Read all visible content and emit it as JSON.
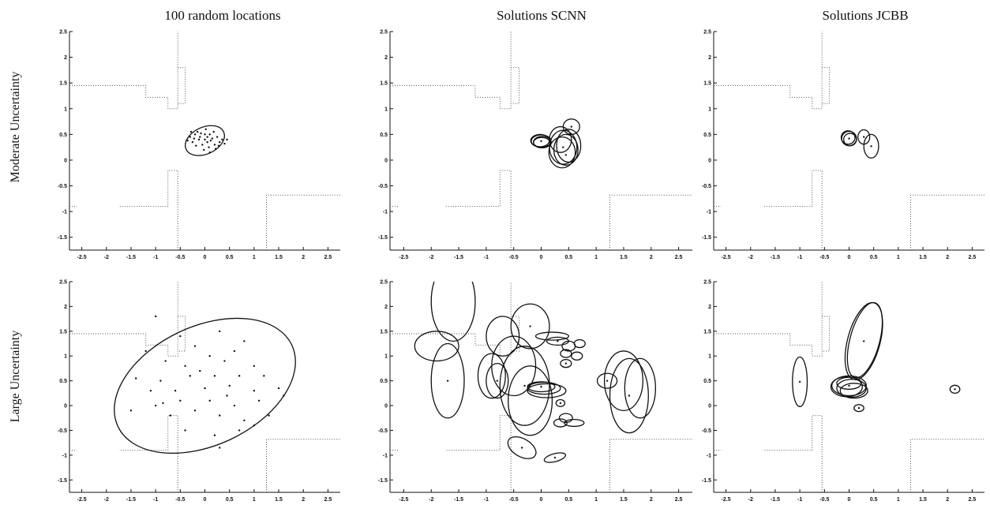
{
  "figure": {
    "col_titles": [
      "100 random locations",
      "Solutions SCNN",
      "Solutions JCBB"
    ],
    "row_labels": [
      "Moderate Uncertainty",
      "Large Uncertainty"
    ]
  },
  "axes": {
    "xlim": [
      -2.75,
      2.75
    ],
    "ylim": [
      -1.75,
      2.5
    ],
    "xticks": [
      "-2.5",
      "-2",
      "-1.5",
      "-1",
      "-0.5",
      "0",
      "0.5",
      "1",
      "1.5",
      "2",
      "2.5"
    ],
    "yticks": [
      "2.5",
      "2",
      "1.5",
      "1",
      "0.5",
      "0",
      "-0.5",
      "-1",
      "-1.5"
    ]
  },
  "map_walls": [
    [
      [
        -2.75,
        1.45
      ],
      [
        -1.2,
        1.45
      ],
      [
        -1.2,
        1.22
      ],
      [
        -0.75,
        1.22
      ],
      [
        -0.75,
        1.0
      ],
      [
        -0.55,
        1.0
      ],
      [
        -0.55,
        2.5
      ]
    ],
    [
      [
        -0.55,
        1.8
      ],
      [
        -0.4,
        1.8
      ],
      [
        -0.4,
        1.1
      ],
      [
        -0.55,
        1.1
      ]
    ],
    [
      [
        -0.55,
        -1.75
      ],
      [
        -0.55,
        -0.2
      ],
      [
        -0.75,
        -0.2
      ],
      [
        -0.75,
        -0.9
      ],
      [
        -1.75,
        -0.9
      ]
    ],
    [
      [
        -2.75,
        -0.9
      ],
      [
        -2.6,
        -0.9
      ]
    ],
    [
      [
        1.25,
        -1.75
      ],
      [
        1.25,
        -0.68
      ],
      [
        2.75,
        -0.68
      ]
    ]
  ],
  "chart_data": [
    {
      "type": "scatter",
      "title": "100 random locations",
      "row": "Moderate Uncertainty",
      "xlim": [
        -2.75,
        2.75
      ],
      "ylim": [
        -1.75,
        2.5
      ],
      "ellipses": [
        {
          "cx": 0.0,
          "cy": 0.38,
          "rx": 0.42,
          "ry": 0.26,
          "angle_deg": -25
        }
      ],
      "points": [
        [
          -0.2,
          0.5
        ],
        [
          -0.15,
          0.55
        ],
        [
          -0.1,
          0.45
        ],
        [
          0.0,
          0.4
        ],
        [
          0.05,
          0.35
        ],
        [
          0.1,
          0.5
        ],
        [
          0.15,
          0.42
        ],
        [
          0.2,
          0.3
        ],
        [
          -0.25,
          0.35
        ],
        [
          -0.05,
          0.3
        ],
        [
          0.0,
          0.5
        ],
        [
          0.08,
          0.25
        ],
        [
          0.25,
          0.45
        ],
        [
          -0.3,
          0.45
        ],
        [
          0.12,
          0.38
        ],
        [
          -0.12,
          0.4
        ],
        [
          0.3,
          0.35
        ],
        [
          0.02,
          0.6
        ],
        [
          -0.18,
          0.28
        ],
        [
          0.18,
          0.55
        ],
        [
          0.35,
          0.4
        ],
        [
          -0.08,
          0.52
        ],
        [
          0.05,
          0.45
        ],
        [
          -0.22,
          0.42
        ],
        [
          0.22,
          0.22
        ],
        [
          0.1,
          0.15
        ],
        [
          -0.02,
          0.2
        ],
        [
          0.28,
          0.28
        ],
        [
          -0.35,
          0.38
        ],
        [
          0.4,
          0.32
        ],
        [
          0.45,
          0.4
        ],
        [
          -0.28,
          0.55
        ]
      ]
    },
    {
      "type": "scatter",
      "title": "Solutions SCNN",
      "row": "Moderate Uncertainty",
      "xlim": [
        -2.75,
        2.75
      ],
      "ylim": [
        -1.75,
        2.5
      ],
      "ellipses": [
        {
          "cx": 0.0,
          "cy": 0.37,
          "rx": 0.18,
          "ry": 0.12,
          "angle_deg": 0
        },
        {
          "cx": 0.02,
          "cy": 0.35,
          "rx": 0.16,
          "ry": 0.11,
          "angle_deg": 0
        },
        {
          "cx": -0.02,
          "cy": 0.38,
          "rx": 0.17,
          "ry": 0.12,
          "angle_deg": 0
        },
        {
          "cx": 0.01,
          "cy": 0.34,
          "rx": 0.15,
          "ry": 0.1,
          "angle_deg": 0
        },
        {
          "cx": 0.4,
          "cy": 0.25,
          "rx": 0.25,
          "ry": 0.33,
          "angle_deg": 0
        },
        {
          "cx": 0.45,
          "cy": 0.2,
          "rx": 0.22,
          "ry": 0.3,
          "angle_deg": 0
        },
        {
          "cx": 0.38,
          "cy": 0.15,
          "rx": 0.24,
          "ry": 0.3,
          "angle_deg": 0
        },
        {
          "cx": 0.5,
          "cy": 0.28,
          "rx": 0.22,
          "ry": 0.32,
          "angle_deg": 0
        },
        {
          "cx": 0.55,
          "cy": 0.65,
          "rx": 0.15,
          "ry": 0.15,
          "angle_deg": 0
        },
        {
          "cx": 0.35,
          "cy": 0.4,
          "rx": 0.2,
          "ry": 0.25,
          "angle_deg": 0
        }
      ],
      "points": [
        [
          0.0,
          0.37
        ],
        [
          0.4,
          0.25
        ],
        [
          0.55,
          0.65
        ],
        [
          0.45,
          0.1
        ]
      ]
    },
    {
      "type": "scatter",
      "title": "Solutions JCBB",
      "row": "Moderate Uncertainty",
      "xlim": [
        -2.75,
        2.75
      ],
      "ylim": [
        -1.75,
        2.5
      ],
      "ellipses": [
        {
          "cx": 0.0,
          "cy": 0.42,
          "rx": 0.15,
          "ry": 0.14,
          "angle_deg": 0
        },
        {
          "cx": 0.02,
          "cy": 0.4,
          "rx": 0.13,
          "ry": 0.12,
          "angle_deg": 0
        },
        {
          "cx": -0.02,
          "cy": 0.44,
          "rx": 0.14,
          "ry": 0.13,
          "angle_deg": 0
        },
        {
          "cx": 0.3,
          "cy": 0.45,
          "rx": 0.12,
          "ry": 0.14,
          "angle_deg": 0
        },
        {
          "cx": 0.45,
          "cy": 0.27,
          "rx": 0.15,
          "ry": 0.23,
          "angle_deg": 0
        }
      ],
      "points": [
        [
          0.0,
          0.42
        ],
        [
          0.3,
          0.45
        ],
        [
          0.45,
          0.27
        ]
      ]
    },
    {
      "type": "scatter",
      "title": "100 random locations",
      "row": "Large Uncertainty",
      "xlim": [
        -2.75,
        2.75
      ],
      "ylim": [
        -1.75,
        2.5
      ],
      "ellipses": [
        {
          "cx": 0.0,
          "cy": 0.4,
          "rx": 1.95,
          "ry": 1.2,
          "angle_deg": -25
        }
      ],
      "points": [
        [
          -1.0,
          1.8
        ],
        [
          -0.5,
          1.4
        ],
        [
          0.3,
          1.5
        ],
        [
          0.8,
          1.3
        ],
        [
          -0.2,
          1.2
        ],
        [
          0.6,
          1.1
        ],
        [
          -1.2,
          1.1
        ],
        [
          -0.8,
          0.9
        ],
        [
          0.1,
          1.0
        ],
        [
          0.4,
          0.9
        ],
        [
          1.0,
          0.8
        ],
        [
          -0.4,
          0.8
        ],
        [
          -1.4,
          0.55
        ],
        [
          -0.9,
          0.5
        ],
        [
          -0.3,
          0.6
        ],
        [
          0.2,
          0.6
        ],
        [
          0.7,
          0.6
        ],
        [
          1.2,
          0.6
        ],
        [
          -1.1,
          0.3
        ],
        [
          -0.6,
          0.3
        ],
        [
          0.0,
          0.35
        ],
        [
          0.5,
          0.4
        ],
        [
          1.0,
          0.3
        ],
        [
          1.5,
          0.35
        ],
        [
          -1.5,
          -0.1
        ],
        [
          -1.0,
          0.0
        ],
        [
          -0.5,
          0.1
        ],
        [
          0.1,
          0.1
        ],
        [
          0.6,
          0.0
        ],
        [
          1.1,
          0.1
        ],
        [
          -0.7,
          -0.2
        ],
        [
          -0.2,
          -0.1
        ],
        [
          0.3,
          -0.2
        ],
        [
          0.8,
          -0.3
        ],
        [
          1.3,
          -0.2
        ],
        [
          -0.4,
          -0.5
        ],
        [
          0.2,
          -0.6
        ],
        [
          0.7,
          -0.5
        ],
        [
          1.0,
          -0.4
        ],
        [
          0.3,
          -0.85
        ],
        [
          1.6,
          0.2
        ],
        [
          -0.1,
          0.7
        ],
        [
          0.45,
          0.2
        ],
        [
          -0.85,
          0.05
        ]
      ]
    },
    {
      "type": "scatter",
      "title": "Solutions SCNN",
      "row": "Large Uncertainty",
      "xlim": [
        -2.75,
        2.75
      ],
      "ylim": [
        -1.75,
        2.5
      ],
      "ellipses": [
        {
          "cx": -1.6,
          "cy": 2.1,
          "rx": 0.4,
          "ry": 0.8,
          "angle_deg": 0
        },
        {
          "cx": -1.9,
          "cy": 1.2,
          "rx": 0.4,
          "ry": 0.3,
          "angle_deg": 0
        },
        {
          "cx": -1.7,
          "cy": 0.5,
          "rx": 0.3,
          "ry": 0.75,
          "angle_deg": 0
        },
        {
          "cx": -0.9,
          "cy": 0.6,
          "rx": 0.25,
          "ry": 0.45,
          "angle_deg": 0
        },
        {
          "cx": -0.8,
          "cy": 0.5,
          "rx": 0.2,
          "ry": 0.35,
          "angle_deg": 0
        },
        {
          "cx": -0.7,
          "cy": 1.4,
          "rx": 0.3,
          "ry": 0.4,
          "angle_deg": 0
        },
        {
          "cx": -0.2,
          "cy": 1.6,
          "rx": 0.35,
          "ry": 0.45,
          "angle_deg": 0
        },
        {
          "cx": -0.3,
          "cy": 0.4,
          "rx": 0.45,
          "ry": 0.8,
          "angle_deg": 0
        },
        {
          "cx": -0.2,
          "cy": 0.1,
          "rx": 0.4,
          "ry": 0.7,
          "angle_deg": 0
        },
        {
          "cx": -0.5,
          "cy": 0.8,
          "rx": 0.4,
          "ry": 0.6,
          "angle_deg": 0
        },
        {
          "cx": 0.05,
          "cy": 0.35,
          "rx": 0.3,
          "ry": 0.12,
          "angle_deg": 0
        },
        {
          "cx": 0.0,
          "cy": 0.38,
          "rx": 0.25,
          "ry": 0.1,
          "angle_deg": 0
        },
        {
          "cx": 0.1,
          "cy": 0.3,
          "rx": 0.35,
          "ry": 0.14,
          "angle_deg": 0
        },
        {
          "cx": 0.2,
          "cy": 1.4,
          "rx": 0.3,
          "ry": 0.08,
          "angle_deg": 0
        },
        {
          "cx": 0.3,
          "cy": 1.3,
          "rx": 0.2,
          "ry": 0.08,
          "angle_deg": 0
        },
        {
          "cx": 0.5,
          "cy": 1.2,
          "rx": 0.12,
          "ry": 0.1,
          "angle_deg": 0
        },
        {
          "cx": 0.7,
          "cy": 1.25,
          "rx": 0.1,
          "ry": 0.08,
          "angle_deg": 0
        },
        {
          "cx": 0.65,
          "cy": 1.0,
          "rx": 0.1,
          "ry": 0.08,
          "angle_deg": 0
        },
        {
          "cx": 0.45,
          "cy": 1.05,
          "rx": 0.1,
          "ry": 0.08,
          "angle_deg": 0
        },
        {
          "cx": 0.45,
          "cy": 0.85,
          "rx": 0.1,
          "ry": 0.08,
          "angle_deg": 0
        },
        {
          "cx": 0.35,
          "cy": 0.05,
          "rx": 0.08,
          "ry": 0.07,
          "angle_deg": 0
        },
        {
          "cx": 0.45,
          "cy": -0.25,
          "rx": 0.12,
          "ry": 0.09,
          "angle_deg": 0
        },
        {
          "cx": 0.35,
          "cy": -0.35,
          "rx": 0.12,
          "ry": 0.08,
          "angle_deg": 0
        },
        {
          "cx": 0.6,
          "cy": -0.35,
          "rx": 0.18,
          "ry": 0.07,
          "angle_deg": 0
        },
        {
          "cx": -0.35,
          "cy": -0.85,
          "rx": 0.28,
          "ry": 0.18,
          "angle_deg": 30
        },
        {
          "cx": 0.25,
          "cy": -1.05,
          "rx": 0.2,
          "ry": 0.08,
          "angle_deg": -15
        },
        {
          "cx": 1.2,
          "cy": 0.5,
          "rx": 0.18,
          "ry": 0.15,
          "angle_deg": 0
        },
        {
          "cx": 1.5,
          "cy": 0.5,
          "rx": 0.35,
          "ry": 0.6,
          "angle_deg": 0
        },
        {
          "cx": 1.6,
          "cy": 0.2,
          "rx": 0.35,
          "ry": 0.75,
          "angle_deg": 0
        },
        {
          "cx": 1.8,
          "cy": 0.35,
          "rx": 0.28,
          "ry": 0.6,
          "angle_deg": 0
        }
      ],
      "points": [
        [
          -1.7,
          0.5
        ],
        [
          -0.8,
          0.5
        ],
        [
          -0.2,
          1.6
        ],
        [
          0.3,
          1.3
        ],
        [
          0.0,
          0.38
        ],
        [
          1.2,
          0.5
        ],
        [
          1.6,
          0.2
        ],
        [
          -0.35,
          -0.85
        ],
        [
          0.25,
          -1.05
        ],
        [
          0.45,
          0.85
        ],
        [
          0.35,
          0.05
        ],
        [
          -0.3,
          0.4
        ]
      ]
    },
    {
      "type": "scatter",
      "title": "Solutions JCBB",
      "row": "Large Uncertainty",
      "xlim": [
        -2.75,
        2.75
      ],
      "ylim": [
        -1.75,
        2.5
      ],
      "ellipses": [
        {
          "cx": -1.0,
          "cy": 0.48,
          "rx": 0.15,
          "ry": 0.5,
          "angle_deg": 0
        },
        {
          "cx": 0.3,
          "cy": 1.3,
          "rx": 0.33,
          "ry": 0.8,
          "angle_deg": 15
        },
        {
          "cx": 0.32,
          "cy": 1.32,
          "rx": 0.3,
          "ry": 0.78,
          "angle_deg": 15
        },
        {
          "cx": 0.0,
          "cy": 0.4,
          "rx": 0.35,
          "ry": 0.2,
          "angle_deg": 0
        },
        {
          "cx": 0.05,
          "cy": 0.35,
          "rx": 0.3,
          "ry": 0.18,
          "angle_deg": 0
        },
        {
          "cx": -0.05,
          "cy": 0.38,
          "rx": 0.32,
          "ry": 0.2,
          "angle_deg": 0
        },
        {
          "cx": 0.1,
          "cy": 0.3,
          "rx": 0.28,
          "ry": 0.15,
          "angle_deg": 0
        },
        {
          "cx": 0.0,
          "cy": 0.45,
          "rx": 0.25,
          "ry": 0.12,
          "angle_deg": 0
        },
        {
          "cx": 0.2,
          "cy": -0.05,
          "rx": 0.1,
          "ry": 0.07,
          "angle_deg": 0
        },
        {
          "cx": 2.15,
          "cy": 0.33,
          "rx": 0.1,
          "ry": 0.08,
          "angle_deg": 0
        }
      ],
      "points": [
        [
          -1.0,
          0.48
        ],
        [
          0.3,
          1.3
        ],
        [
          0.0,
          0.4
        ],
        [
          0.2,
          -0.05
        ],
        [
          2.15,
          0.33
        ]
      ]
    }
  ]
}
